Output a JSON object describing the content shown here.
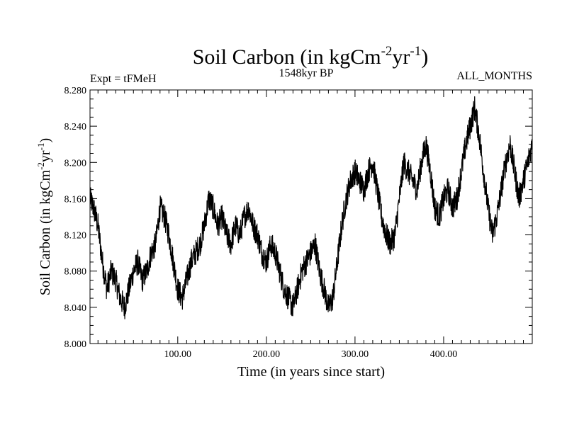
{
  "chart_data": {
    "type": "line",
    "title": "Soil Carbon (in kgCm",
    "title_sup1": "-2",
    "title_mid": "yr",
    "title_sup2": "-1",
    "title_end": ")",
    "subtitle": "1548kyr BP",
    "experiment_label": "Expt = tFMeH",
    "months_label": "ALL_MONTHS",
    "xlabel": "Time (in years since start)",
    "ylabel": "Soil Carbon (in kgCm",
    "ylabel_sup1": "-2",
    "ylabel_mid": "yr",
    "ylabel_sup2": "-1",
    "ylabel_end": ")",
    "xlim": [
      1,
      500
    ],
    "ylim": [
      8.0,
      8.28
    ],
    "x_ticks": [
      100,
      200,
      300,
      400
    ],
    "x_tick_labels": [
      "100.00",
      "200.00",
      "300.00",
      "400.00"
    ],
    "y_ticks": [
      8.0,
      8.04,
      8.08,
      8.12,
      8.16,
      8.2,
      8.24,
      8.28
    ],
    "y_tick_labels": [
      "8.000",
      "8.040",
      "8.080",
      "8.120",
      "8.160",
      "8.200",
      "8.240",
      "8.280"
    ],
    "series": [
      {
        "name": "Soil Carbon",
        "x": [
          1,
          5,
          10,
          15,
          20,
          25,
          30,
          35,
          40,
          45,
          50,
          55,
          60,
          65,
          70,
          75,
          80,
          85,
          90,
          95,
          100,
          105,
          110,
          115,
          120,
          125,
          130,
          135,
          140,
          145,
          150,
          155,
          160,
          165,
          170,
          175,
          180,
          185,
          190,
          195,
          200,
          205,
          210,
          215,
          220,
          225,
          230,
          235,
          240,
          245,
          250,
          255,
          260,
          265,
          270,
          275,
          280,
          285,
          290,
          295,
          300,
          305,
          310,
          315,
          320,
          325,
          330,
          335,
          340,
          345,
          350,
          355,
          360,
          365,
          370,
          375,
          380,
          385,
          390,
          395,
          400,
          405,
          410,
          415,
          420,
          425,
          430,
          435,
          440,
          445,
          450,
          455,
          460,
          465,
          470,
          475,
          480,
          485,
          490,
          495,
          500
        ],
        "values": [
          8.16,
          8.15,
          8.13,
          8.09,
          8.06,
          8.08,
          8.07,
          8.05,
          8.04,
          8.06,
          8.08,
          8.09,
          8.07,
          8.08,
          8.1,
          8.11,
          8.15,
          8.14,
          8.12,
          8.09,
          8.06,
          8.05,
          8.07,
          8.09,
          8.1,
          8.11,
          8.13,
          8.16,
          8.15,
          8.13,
          8.14,
          8.12,
          8.11,
          8.13,
          8.12,
          8.14,
          8.15,
          8.13,
          8.12,
          8.1,
          8.09,
          8.11,
          8.1,
          8.08,
          8.06,
          8.05,
          8.04,
          8.06,
          8.08,
          8.09,
          8.1,
          8.11,
          8.08,
          8.06,
          8.04,
          8.05,
          8.09,
          8.13,
          8.16,
          8.18,
          8.19,
          8.18,
          8.17,
          8.19,
          8.2,
          8.17,
          8.14,
          8.12,
          8.11,
          8.12,
          8.16,
          8.2,
          8.19,
          8.18,
          8.17,
          8.2,
          8.22,
          8.19,
          8.15,
          8.14,
          8.16,
          8.17,
          8.15,
          8.16,
          8.19,
          8.22,
          8.24,
          8.26,
          8.23,
          8.19,
          8.15,
          8.12,
          8.14,
          8.17,
          8.2,
          8.22,
          8.19,
          8.16,
          8.18,
          8.2,
          8.22
        ]
      }
    ]
  }
}
